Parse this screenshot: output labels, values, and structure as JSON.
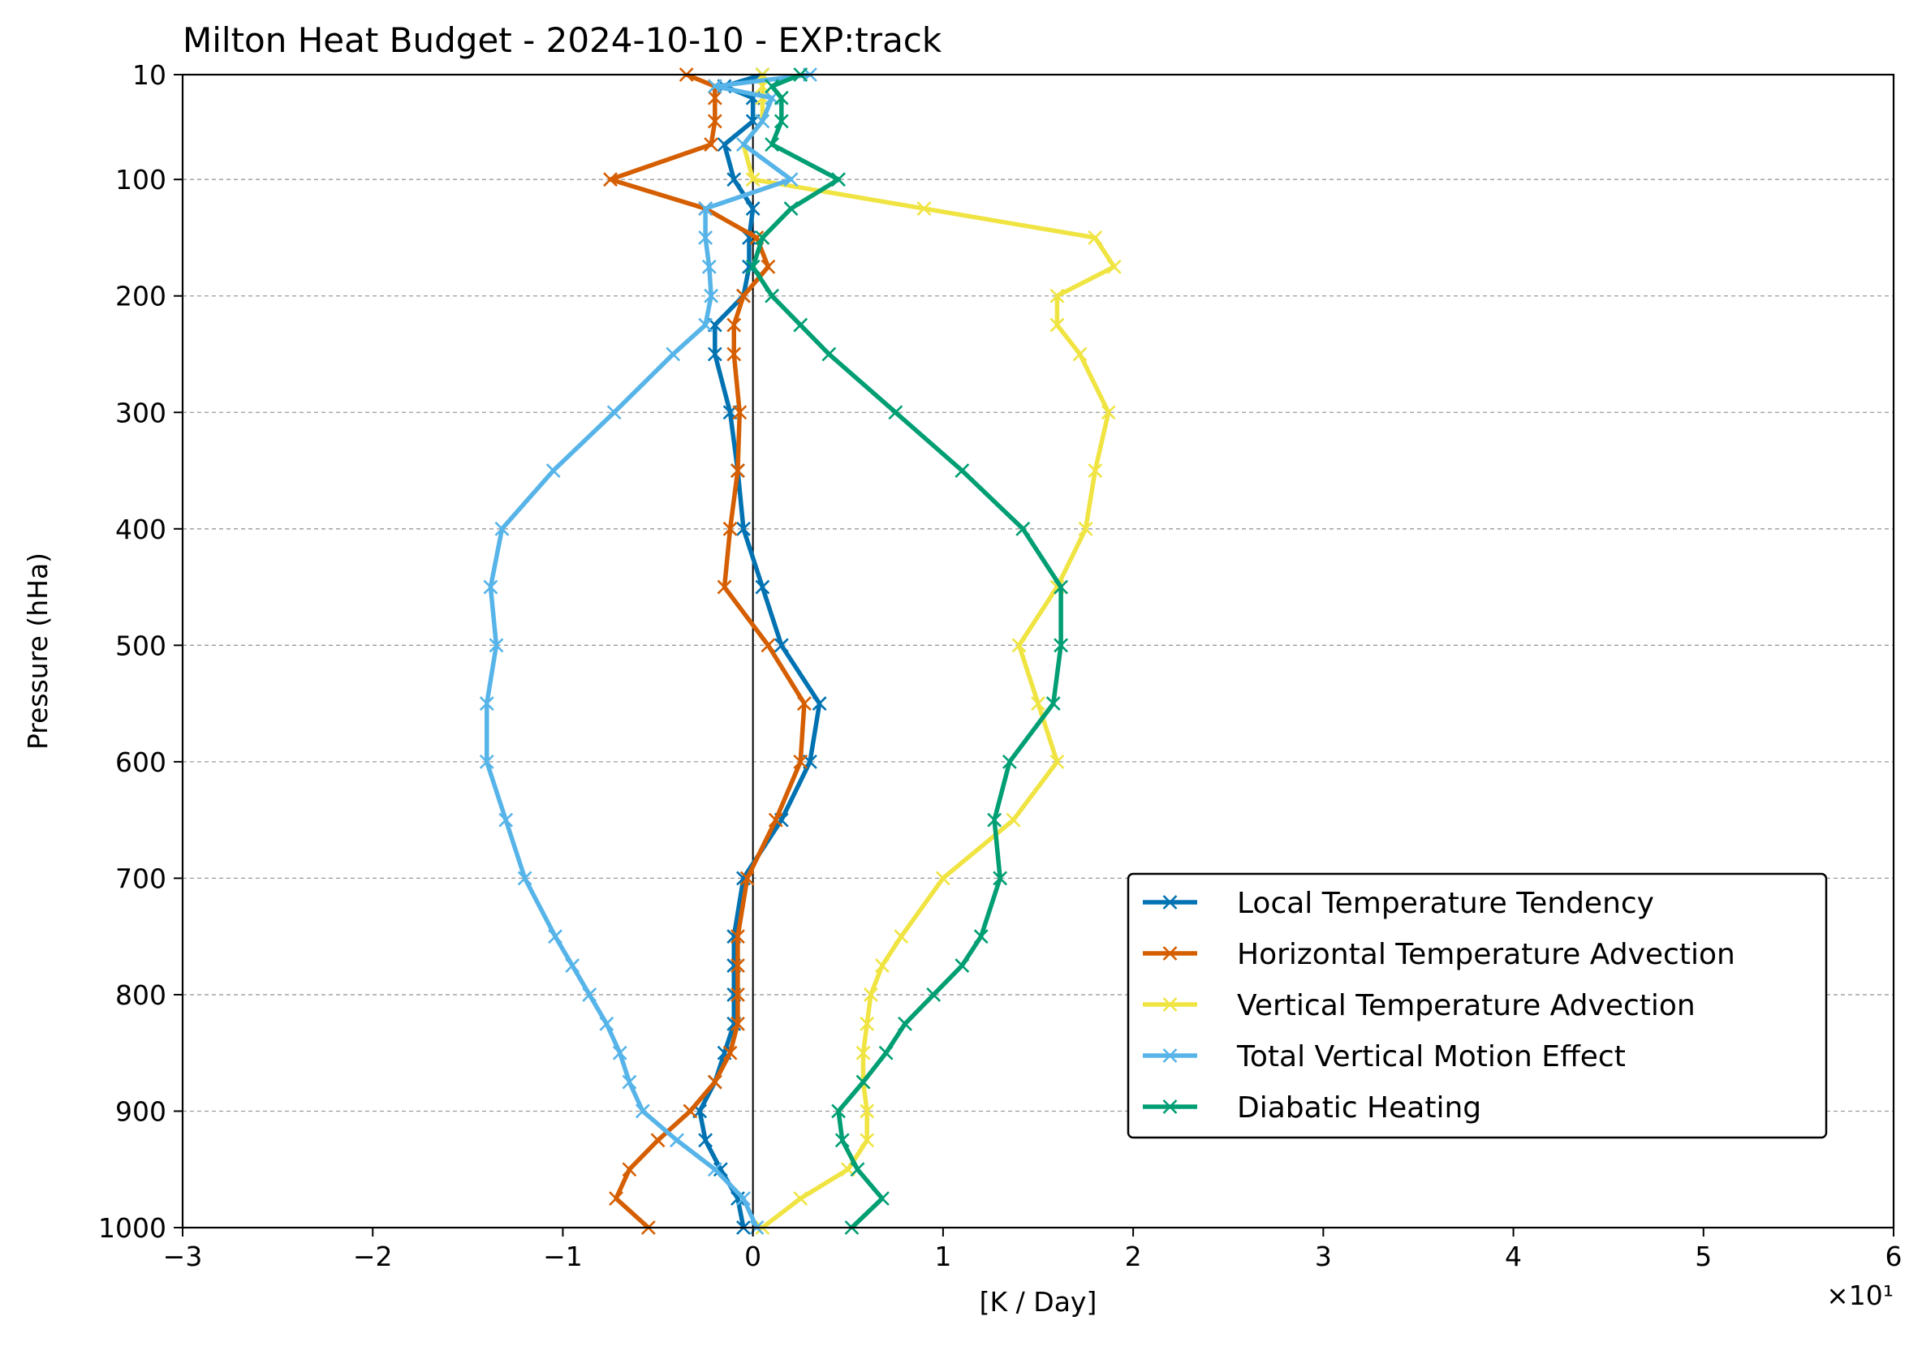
{
  "chart_data": {
    "type": "line",
    "title": "Milton Heat Budget - 2024-10-10 - EXP:track",
    "xlabel": "[K / Day]",
    "ylabel": "Pressure (hHa)",
    "x_multiplier": "×10¹",
    "xlim": [
      -3,
      6
    ],
    "ylim": [
      1000,
      10
    ],
    "x_ticks": [
      -3,
      -2,
      -1,
      0,
      1,
      2,
      3,
      4,
      5,
      6
    ],
    "x_tick_labels": [
      "−3",
      "−2",
      "−1",
      "0",
      "1",
      "2",
      "3",
      "4",
      "5",
      "6"
    ],
    "y_ticks": [
      10,
      100,
      200,
      300,
      400,
      500,
      600,
      700,
      800,
      900,
      1000
    ],
    "y_tick_labels": [
      "10",
      "100",
      "200",
      "300",
      "400",
      "500",
      "600",
      "700",
      "800",
      "900",
      "1000"
    ],
    "grid": "horizontal dashed at y ticks",
    "zero_line": true,
    "legend_position": "lower-right",
    "pressure_levels": [
      10,
      20,
      30,
      50,
      70,
      100,
      125,
      150,
      175,
      200,
      225,
      250,
      300,
      350,
      400,
      450,
      500,
      550,
      600,
      650,
      700,
      750,
      775,
      800,
      825,
      850,
      875,
      900,
      925,
      950,
      975,
      1000
    ],
    "series": [
      {
        "name": "Local Temperature Tendency",
        "color": "#0072b2",
        "values": [
          0.05,
          -0.15,
          0.0,
          0.0,
          -0.15,
          -0.1,
          0.0,
          -0.02,
          -0.02,
          -0.05,
          -0.2,
          -0.2,
          -0.12,
          -0.08,
          -0.05,
          0.05,
          0.15,
          0.35,
          0.3,
          0.15,
          -0.05,
          -0.1,
          -0.1,
          -0.1,
          -0.1,
          -0.15,
          -0.2,
          -0.28,
          -0.25,
          -0.17,
          -0.08,
          -0.05
        ]
      },
      {
        "name": "Horizontal Temperature Advection",
        "color": "#d55e00",
        "values": [
          -0.35,
          -0.2,
          -0.2,
          -0.2,
          -0.22,
          -0.75,
          -0.25,
          0.02,
          0.08,
          -0.05,
          -0.1,
          -0.1,
          -0.07,
          -0.08,
          -0.12,
          -0.15,
          0.08,
          0.27,
          0.25,
          0.12,
          -0.03,
          -0.08,
          -0.08,
          -0.08,
          -0.08,
          -0.12,
          -0.2,
          -0.33,
          -0.5,
          -0.65,
          -0.72,
          -0.55
        ]
      },
      {
        "name": "Vertical Temperature Advection",
        "color": "#f0e442",
        "values": [
          0.05,
          0.05,
          0.05,
          0.05,
          -0.05,
          0.0,
          0.9,
          1.8,
          1.9,
          1.6,
          1.6,
          1.72,
          1.87,
          1.8,
          1.75,
          1.6,
          1.4,
          1.5,
          1.6,
          1.37,
          1.0,
          0.78,
          0.68,
          0.62,
          0.6,
          0.58,
          0.58,
          0.6,
          0.6,
          0.5,
          0.25,
          0.05
        ]
      },
      {
        "name": "Total Vertical Motion Effect",
        "color": "#56b4e9",
        "values": [
          0.3,
          -0.2,
          0.1,
          0.05,
          -0.05,
          0.2,
          -0.25,
          -0.25,
          -0.23,
          -0.22,
          -0.25,
          -0.42,
          -0.73,
          -1.05,
          -1.32,
          -1.38,
          -1.35,
          -1.4,
          -1.4,
          -1.3,
          -1.2,
          -1.04,
          -0.95,
          -0.86,
          -0.77,
          -0.7,
          -0.65,
          -0.58,
          -0.4,
          -0.2,
          -0.05,
          0.02
        ]
      },
      {
        "name": "Diabatic Heating",
        "color": "#009e73",
        "values": [
          0.25,
          0.1,
          0.15,
          0.15,
          0.1,
          0.45,
          0.2,
          0.05,
          0.0,
          0.1,
          0.25,
          0.4,
          0.75,
          1.1,
          1.42,
          1.62,
          1.62,
          1.58,
          1.35,
          1.27,
          1.3,
          1.2,
          1.1,
          0.95,
          0.8,
          0.7,
          0.58,
          0.45,
          0.47,
          0.55,
          0.68,
          0.52
        ]
      }
    ]
  }
}
